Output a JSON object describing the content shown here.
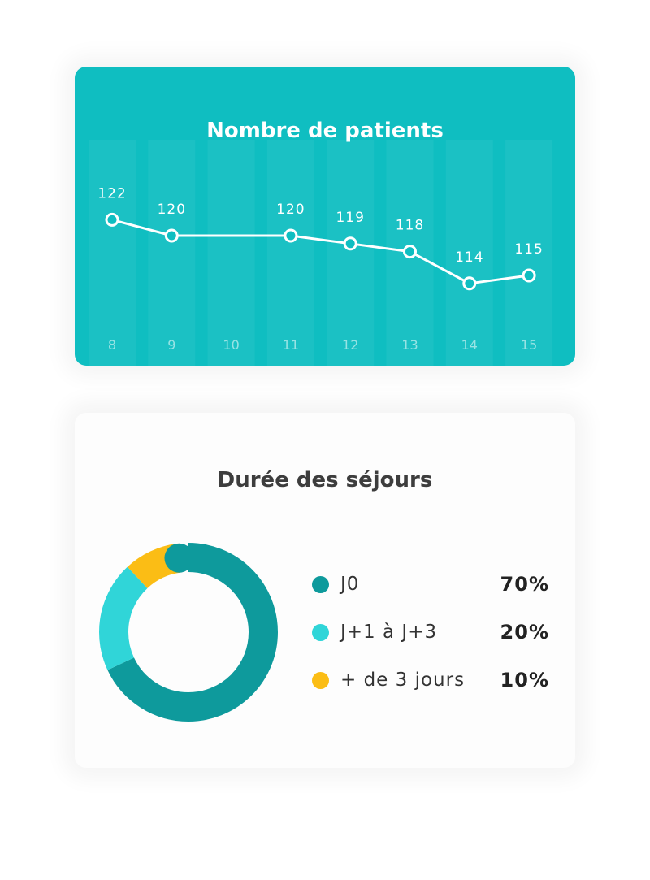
{
  "chart_data": [
    {
      "type": "line",
      "title": "Nombre de patients",
      "categories": [
        "8",
        "9",
        "10",
        "11",
        "12",
        "13",
        "14",
        "15"
      ],
      "series": [
        {
          "values": [
            122,
            120,
            null,
            120,
            119,
            118,
            114,
            115
          ]
        }
      ],
      "ylim": [
        105,
        130
      ],
      "grid": false,
      "colors": {
        "background": "#0fbec1",
        "line": "#ffffff",
        "column": "#ffffff"
      }
    },
    {
      "type": "pie",
      "title": "Durée des séjours",
      "legend_position": "right",
      "slices": [
        {
          "label": "J0",
          "value": 70,
          "display": "70%",
          "color": "#0e9a9c"
        },
        {
          "label": "J+1 à J+3",
          "value": 20,
          "display": "20%",
          "color": "#30d5d8"
        },
        {
          "label": "+ de 3 jours",
          "value": 10,
          "display": "10%",
          "color": "#fbbd15"
        }
      ]
    }
  ]
}
